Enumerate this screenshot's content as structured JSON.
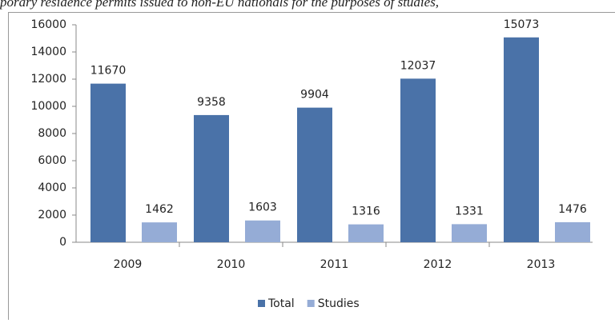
{
  "chart_data": {
    "type": "bar",
    "caption": "porary residence permits issued to non-EU nationals for the purposes of studies,",
    "categories": [
      "2009",
      "2010",
      "2011",
      "2012",
      "2013"
    ],
    "series": [
      {
        "name": "Total",
        "color": "#4a72a8",
        "values": [
          11670,
          9358,
          9904,
          12037,
          15073
        ]
      },
      {
        "name": "Studies",
        "color": "#95acd6",
        "values": [
          1462,
          1603,
          1316,
          1331,
          1476
        ]
      }
    ],
    "ylim": [
      0,
      16000
    ],
    "yticks": [
      0,
      2000,
      4000,
      6000,
      8000,
      10000,
      12000,
      14000,
      16000
    ],
    "legend": "bottom"
  }
}
